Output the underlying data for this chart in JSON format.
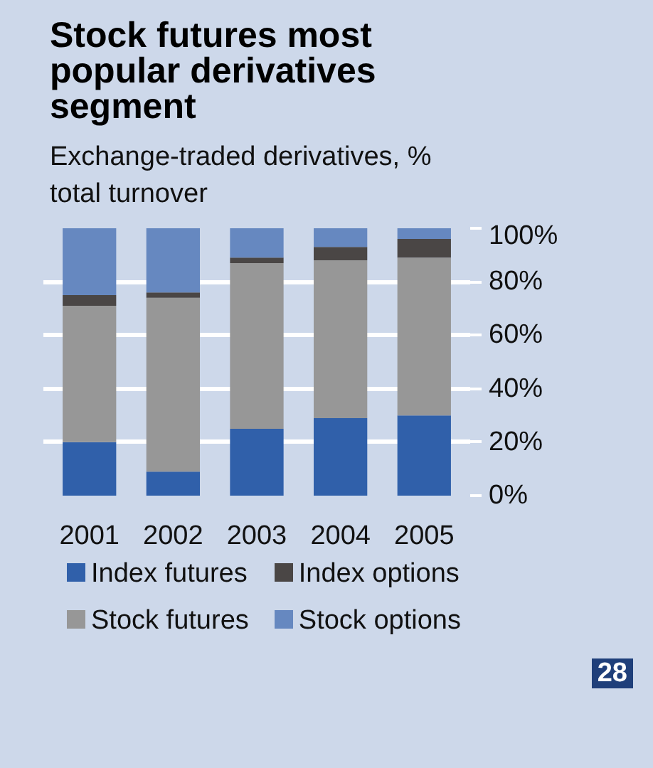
{
  "chart_data": {
    "type": "bar",
    "stacked": true,
    "title": "Stock futures most popular derivatives segment",
    "subtitle": "Exchange-traded derivatives, % total turnover",
    "categories": [
      "2001",
      "2002",
      "2003",
      "2004",
      "2005"
    ],
    "series": [
      {
        "name": "Index futures",
        "color": "#3060aa",
        "values": [
          20,
          9,
          25,
          29,
          30
        ]
      },
      {
        "name": "Stock futures",
        "color": "#979797",
        "values": [
          51,
          65,
          62,
          59,
          59
        ]
      },
      {
        "name": "Index options",
        "color": "#4a4645",
        "values": [
          4,
          2,
          2,
          5,
          7
        ]
      },
      {
        "name": "Stock options",
        "color": "#6688c0",
        "values": [
          25,
          24,
          11,
          7,
          4
        ]
      }
    ],
    "ylim": [
      0,
      100
    ],
    "yticks": [
      {
        "value": 0,
        "label": "0%"
      },
      {
        "value": 20,
        "label": "20%"
      },
      {
        "value": 40,
        "label": "40%"
      },
      {
        "value": 60,
        "label": "60%"
      },
      {
        "value": 80,
        "label": "80%"
      },
      {
        "value": 100,
        "label": "100%"
      }
    ],
    "grid": "y",
    "legend": "bottom",
    "annotations": [
      "28"
    ]
  }
}
